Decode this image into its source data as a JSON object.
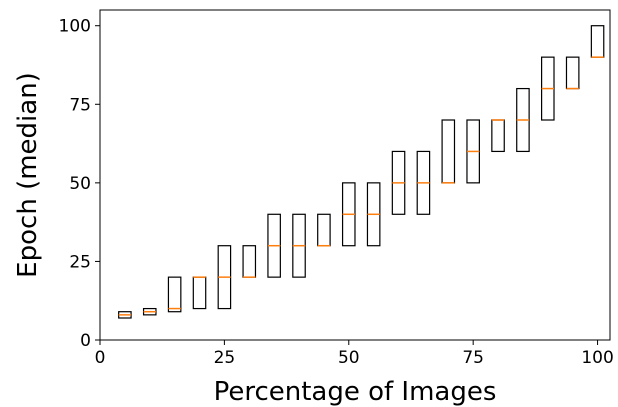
{
  "chart_data": {
    "type": "box",
    "title": "",
    "xlabel": "Percentage of Images",
    "ylabel": "Epoch (median)",
    "xlim": [
      0,
      102.5
    ],
    "ylim": [
      0,
      105
    ],
    "xticks": [
      0,
      25,
      50,
      75,
      100
    ],
    "yticks": [
      0,
      25,
      50,
      75,
      100
    ],
    "grid": false,
    "box_color": "#000000",
    "median_color": "#ff7f0e",
    "boxes": [
      {
        "x": 5,
        "q1": 7,
        "median": 8,
        "q3": 9
      },
      {
        "x": 10,
        "q1": 8,
        "median": 9,
        "q3": 10
      },
      {
        "x": 15,
        "q1": 9,
        "median": 10,
        "q3": 20
      },
      {
        "x": 20,
        "q1": 10,
        "median": 20,
        "q3": 20
      },
      {
        "x": 25,
        "q1": 10,
        "median": 20,
        "q3": 30
      },
      {
        "x": 30,
        "q1": 20,
        "median": 20,
        "q3": 30
      },
      {
        "x": 35,
        "q1": 20,
        "median": 30,
        "q3": 40
      },
      {
        "x": 40,
        "q1": 20,
        "median": 30,
        "q3": 40
      },
      {
        "x": 45,
        "q1": 30,
        "median": 30,
        "q3": 40
      },
      {
        "x": 50,
        "q1": 30,
        "median": 40,
        "q3": 50
      },
      {
        "x": 55,
        "q1": 30,
        "median": 40,
        "q3": 50
      },
      {
        "x": 60,
        "q1": 40,
        "median": 50,
        "q3": 60
      },
      {
        "x": 65,
        "q1": 40,
        "median": 50,
        "q3": 60
      },
      {
        "x": 70,
        "q1": 50,
        "median": 50,
        "q3": 70
      },
      {
        "x": 75,
        "q1": 50,
        "median": 60,
        "q3": 70
      },
      {
        "x": 80,
        "q1": 60,
        "median": 70,
        "q3": 70
      },
      {
        "x": 85,
        "q1": 60,
        "median": 70,
        "q3": 80
      },
      {
        "x": 90,
        "q1": 70,
        "median": 80,
        "q3": 90
      },
      {
        "x": 95,
        "q1": 80,
        "median": 80,
        "q3": 90
      },
      {
        "x": 100,
        "q1": 90,
        "median": 90,
        "q3": 100
      }
    ]
  }
}
